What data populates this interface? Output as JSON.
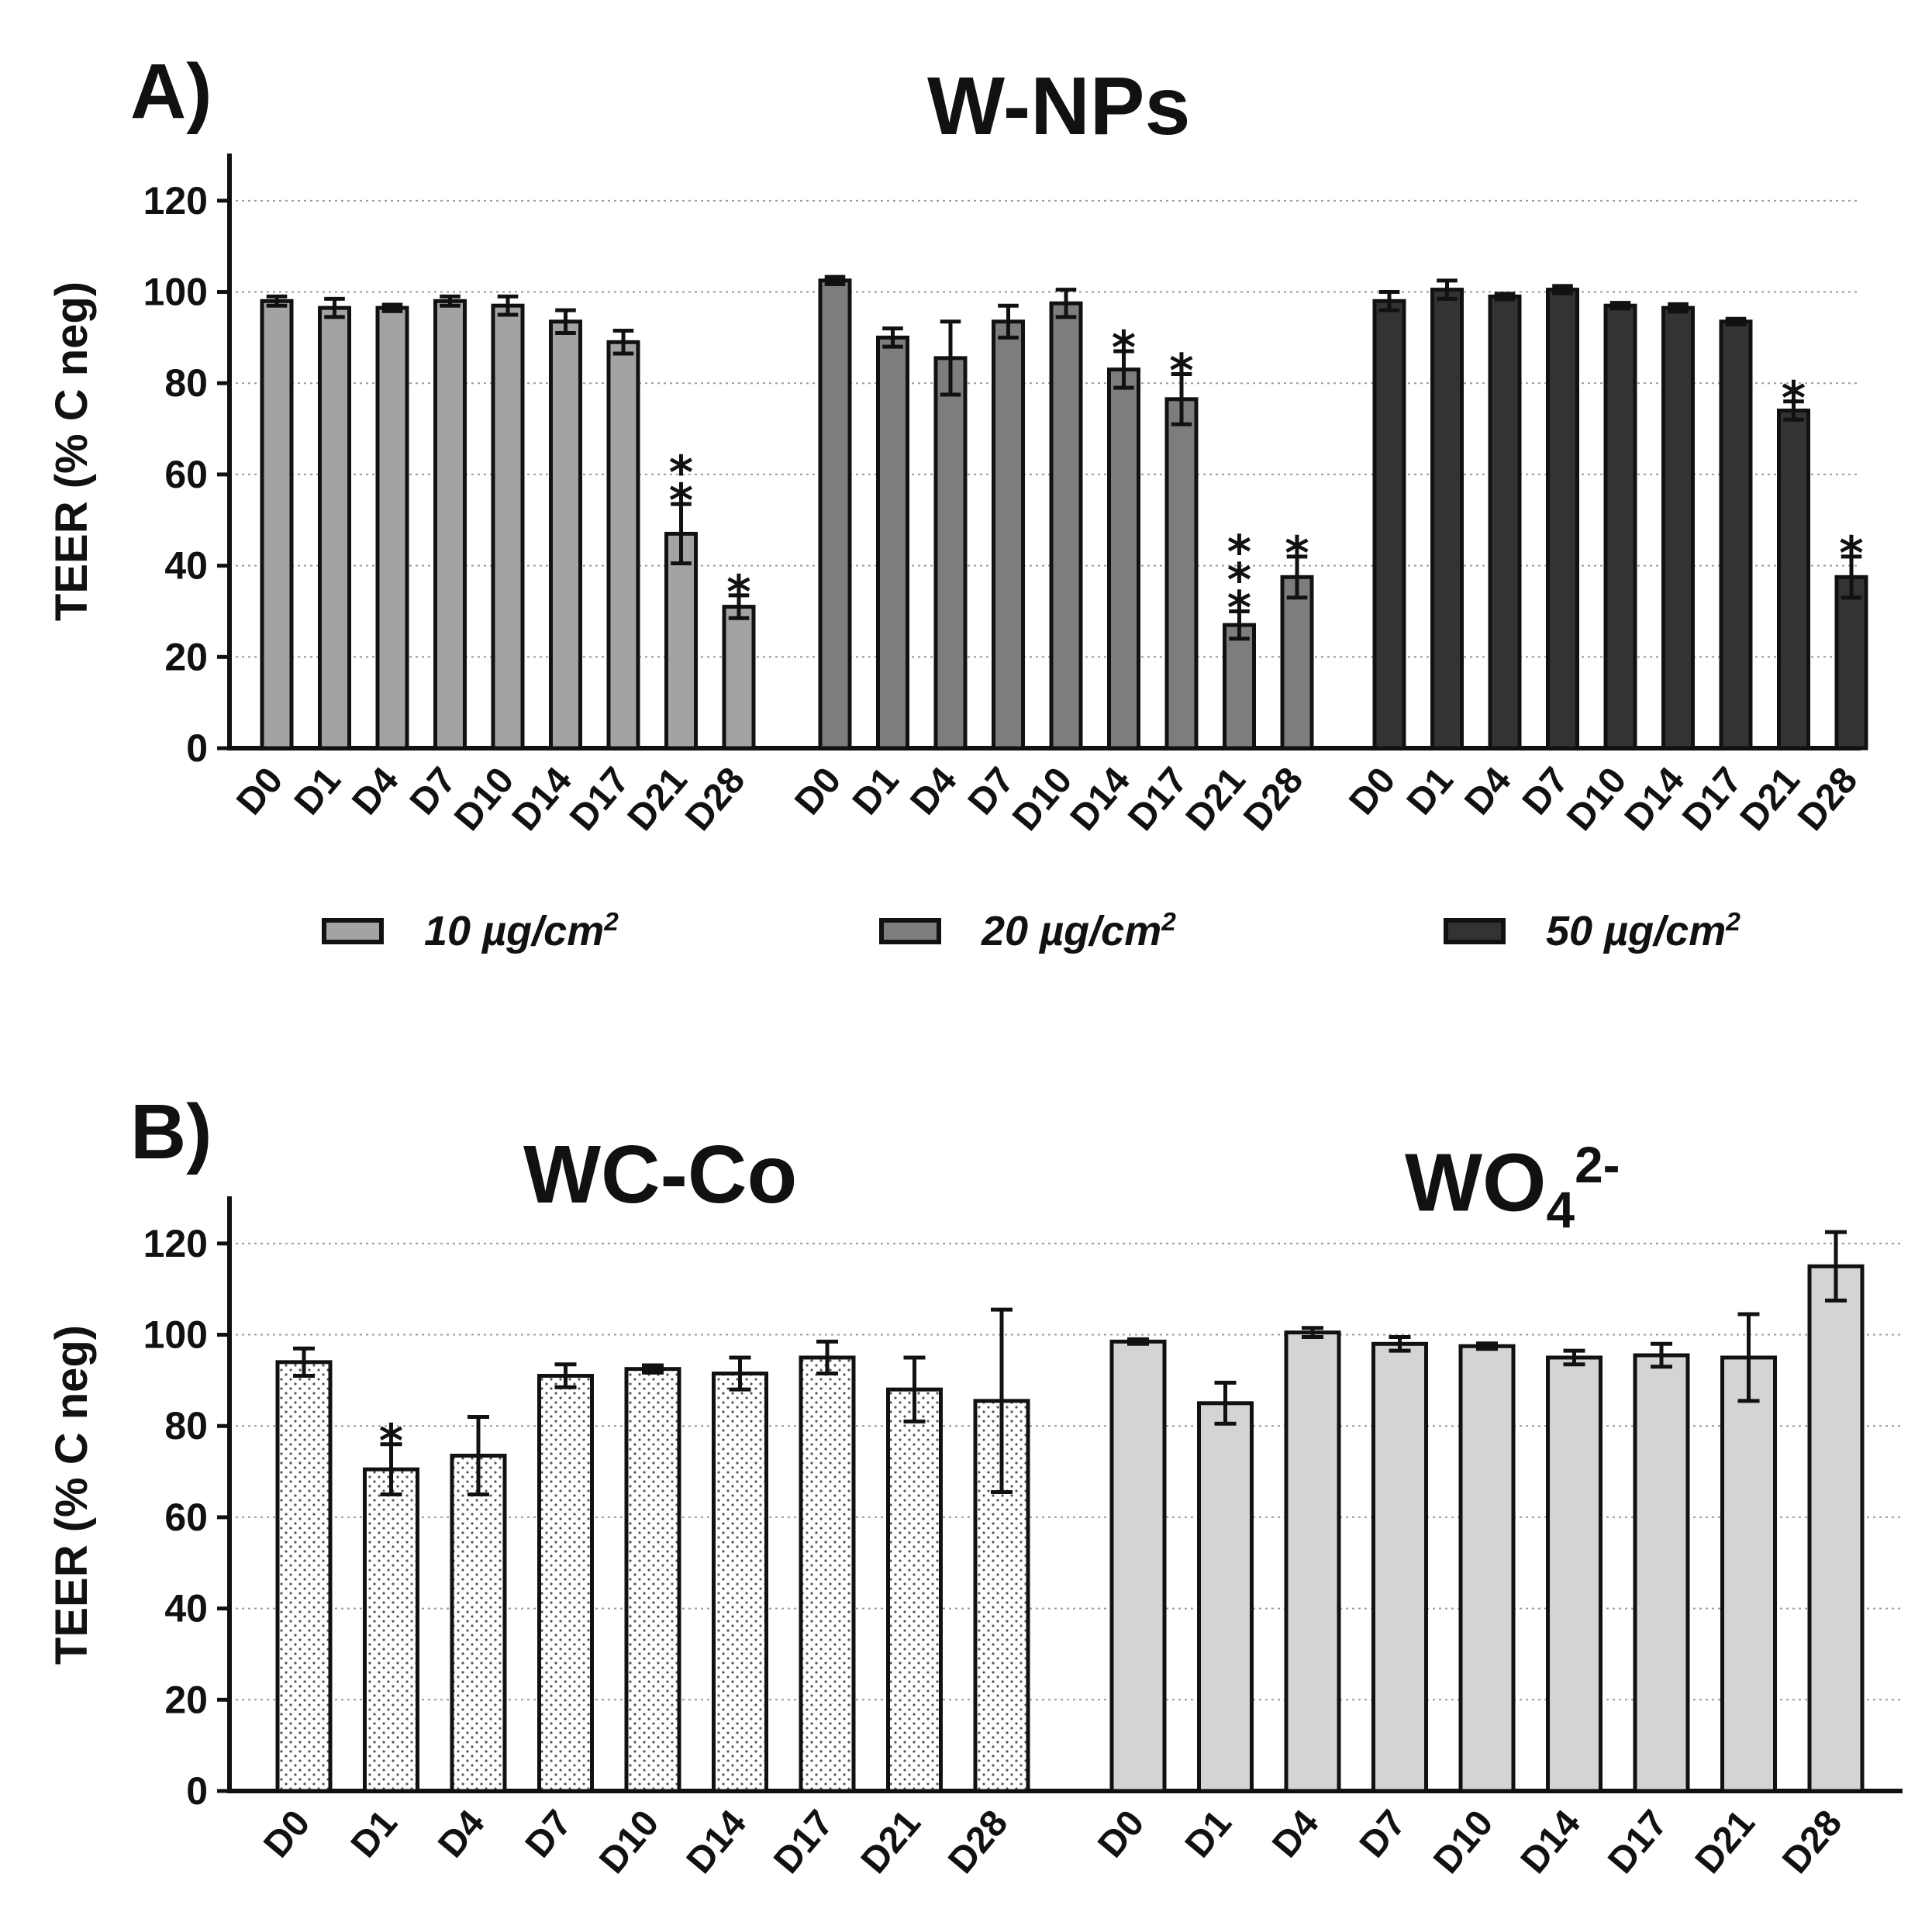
{
  "panels": {
    "a": {
      "label": "A)",
      "title": "W-NPs"
    },
    "b": {
      "label": "B)",
      "title_left": "WC-Co",
      "title_right_base": "WO",
      "title_right_sub": "4",
      "title_right_sup": "2-"
    }
  },
  "legend": [
    {
      "base": "10 µg/cm",
      "sup": "2",
      "color": "#a3a3a3"
    },
    {
      "base": "20 µg/cm",
      "sup": "2",
      "color": "#7d7d7d"
    },
    {
      "base": "50 µg/cm",
      "sup": "2",
      "color": "#333333"
    }
  ],
  "chart_data": [
    {
      "type": "bar",
      "panel": "A",
      "title": "W-NPs",
      "ylabel": "TEER (% C neg)",
      "ylim": [
        0,
        130
      ],
      "yticks": [
        0,
        20,
        40,
        60,
        80,
        100,
        120
      ],
      "grid": true,
      "categories": [
        "D0",
        "D1",
        "D4",
        "D7",
        "D10",
        "D14",
        "D17",
        "D21",
        "D28"
      ],
      "series": [
        {
          "name": "10 µg/cm2",
          "color": "#a3a3a3",
          "values": [
            98,
            96.5,
            96.5,
            98,
            97,
            93.5,
            89,
            47,
            31
          ],
          "errors": [
            1,
            2,
            0.7,
            1,
            2,
            2.5,
            2.5,
            6.5,
            2.5
          ],
          "significance": [
            "",
            "",
            "",
            "",
            "",
            "",
            "",
            "**",
            "*"
          ]
        },
        {
          "name": "20 µg/cm2",
          "color": "#7d7d7d",
          "values": [
            102.5,
            90,
            85.5,
            93.5,
            97.5,
            83,
            76.5,
            27,
            37.5
          ],
          "errors": [
            0.8,
            2,
            8,
            3.5,
            3,
            4,
            5.5,
            3,
            4.5
          ],
          "significance": [
            "",
            "",
            "",
            "",
            "",
            "*",
            "*",
            "***",
            "*"
          ]
        },
        {
          "name": "50 µg/cm2",
          "color": "#333333",
          "values": [
            98,
            100.5,
            99,
            100.5,
            97,
            96.5,
            93.5,
            74,
            37.5
          ],
          "errors": [
            2,
            2,
            0.6,
            0.8,
            0.6,
            0.8,
            0.6,
            2,
            4.5
          ],
          "significance": [
            "",
            "",
            "",
            "",
            "",
            "",
            "",
            "*",
            "*"
          ]
        }
      ]
    },
    {
      "type": "bar",
      "panel": "B",
      "ylabel": "TEER (% C neg)",
      "ylim": [
        0,
        130
      ],
      "yticks": [
        0,
        20,
        40,
        60,
        80,
        100,
        120
      ],
      "grid": true,
      "categories": [
        "D0",
        "D1",
        "D4",
        "D7",
        "D10",
        "D14",
        "D17",
        "D21",
        "D28"
      ],
      "series": [
        {
          "name": "WC-Co",
          "fill": "dotted",
          "values": [
            94,
            70.5,
            73.5,
            91,
            92.5,
            91.5,
            95,
            88,
            85.5
          ],
          "errors": [
            3,
            5.5,
            8.5,
            2.5,
            0.8,
            3.5,
            3.5,
            7,
            20
          ],
          "significance": [
            "",
            "*",
            "",
            "",
            "",
            "",
            "",
            "",
            ""
          ]
        },
        {
          "name": "WO4 2-",
          "color": "#d4d4d4",
          "values": [
            98.5,
            85,
            100.5,
            98,
            97.5,
            95,
            95.5,
            95,
            115
          ],
          "errors": [
            0.5,
            4.5,
            1,
            1.5,
            0.6,
            1.5,
            2.5,
            9.5,
            7.5
          ],
          "significance": [
            "",
            "",
            "",
            "",
            "",
            "",
            "",
            "",
            ""
          ]
        }
      ]
    }
  ]
}
